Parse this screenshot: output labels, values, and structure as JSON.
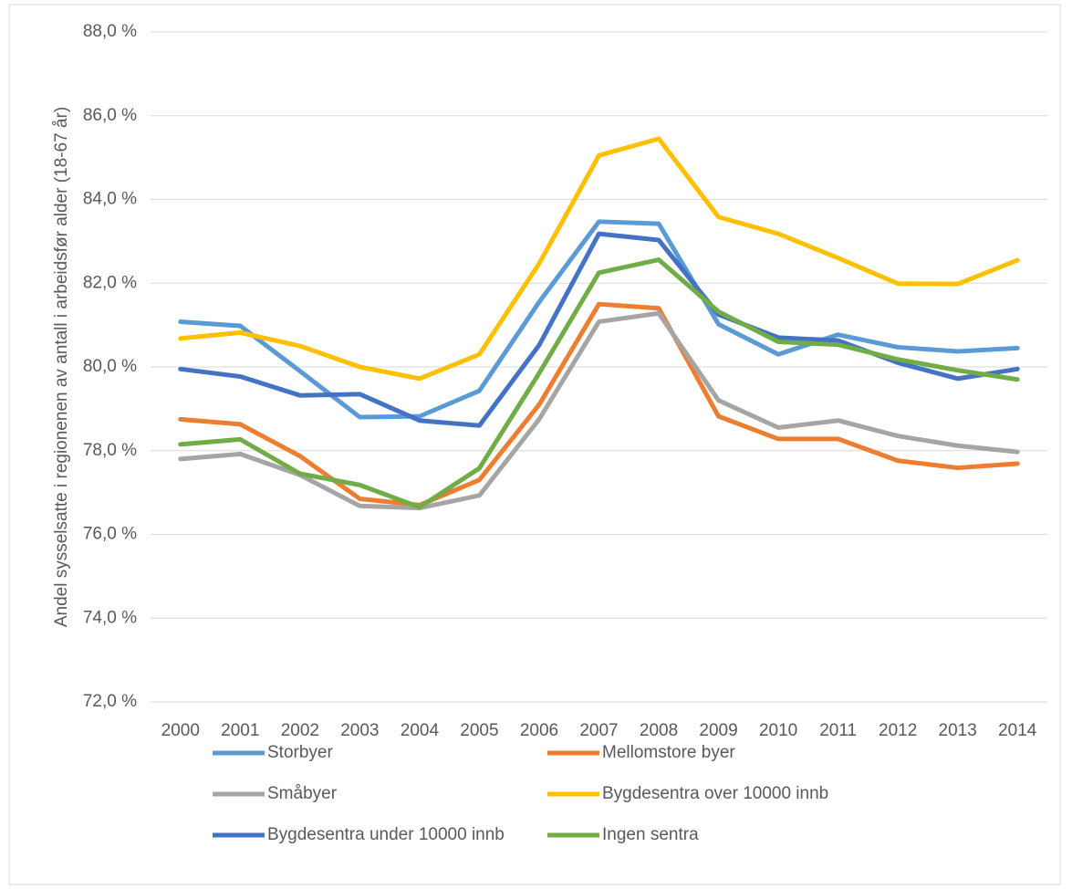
{
  "chart_data": {
    "type": "line",
    "ylabel": "Andel sysselsatte i regionenen av antall i arbeidsfør alder (18-67 år)",
    "categories": [
      "2000",
      "2001",
      "2002",
      "2003",
      "2004",
      "2005",
      "2006",
      "2007",
      "2008",
      "2009",
      "2010",
      "2011",
      "2012",
      "2013",
      "2014"
    ],
    "ylim": [
      72,
      88
    ],
    "yticks": [
      {
        "value": 72,
        "label": "72,0 %"
      },
      {
        "value": 74,
        "label": "74,0 %"
      },
      {
        "value": 76,
        "label": "76,0 %"
      },
      {
        "value": 78,
        "label": "78,0 %"
      },
      {
        "value": 80,
        "label": "80,0 %"
      },
      {
        "value": 82,
        "label": "82,0 %"
      },
      {
        "value": 84,
        "label": "84,0 %"
      },
      {
        "value": 86,
        "label": "86,0 %"
      },
      {
        "value": 88,
        "label": "88,0 %"
      }
    ],
    "grid": true,
    "legend": "bottom",
    "series": [
      {
        "name": "Storbyer",
        "color": "#5b9bd5",
        "values": [
          81.08,
          80.98,
          79.9,
          78.8,
          78.82,
          79.43,
          81.55,
          83.47,
          83.42,
          81.02,
          80.3,
          80.77,
          80.47,
          80.37,
          80.45
        ]
      },
      {
        "name": "Mellomstore byer",
        "color": "#ed7d31",
        "values": [
          78.75,
          78.63,
          77.87,
          76.85,
          76.7,
          77.3,
          79.1,
          81.5,
          81.4,
          78.82,
          78.28,
          78.28,
          77.76,
          77.59,
          77.69
        ]
      },
      {
        "name": "Småbyer",
        "color": "#a5a5a5",
        "values": [
          77.8,
          77.92,
          77.42,
          76.68,
          76.63,
          76.93,
          78.75,
          81.08,
          81.28,
          79.2,
          78.55,
          78.72,
          78.35,
          78.12,
          77.97
        ]
      },
      {
        "name": "Bygdesentra over 10000 innb",
        "color": "#ffc000",
        "values": [
          80.68,
          80.82,
          80.5,
          80.0,
          79.72,
          80.3,
          82.47,
          85.05,
          85.45,
          83.58,
          83.18,
          82.6,
          81.99,
          81.98,
          82.55
        ]
      },
      {
        "name": "Bygdesentra under 10000 innb",
        "color": "#4472c4",
        "values": [
          79.95,
          79.77,
          79.32,
          79.35,
          78.72,
          78.6,
          80.52,
          83.18,
          83.03,
          81.25,
          80.7,
          80.63,
          80.1,
          79.72,
          79.95
        ]
      },
      {
        "name": "Ingen sentra",
        "color": "#70ad47",
        "values": [
          78.15,
          78.27,
          77.45,
          77.18,
          76.65,
          77.58,
          79.85,
          82.25,
          82.56,
          81.32,
          80.6,
          80.53,
          80.18,
          79.92,
          79.7
        ]
      }
    ]
  }
}
